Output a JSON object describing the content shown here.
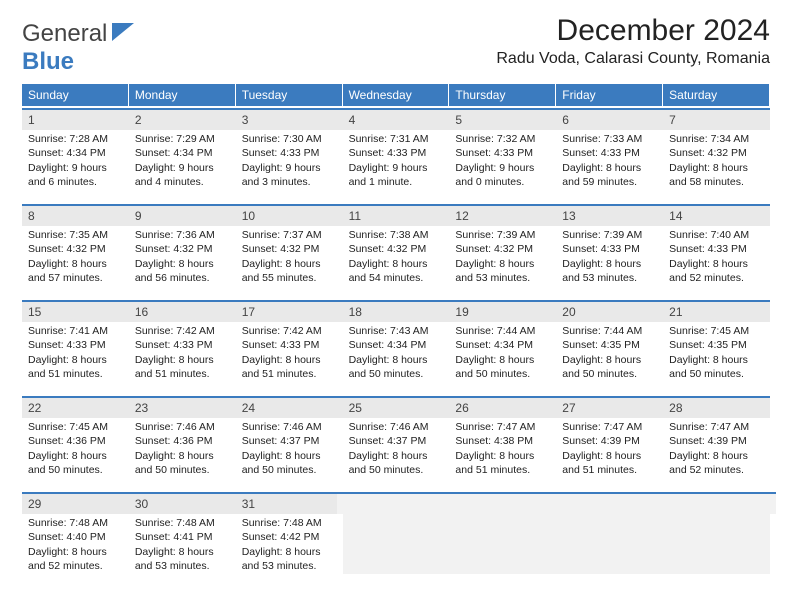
{
  "logo": {
    "part1": "General",
    "part2": "Blue"
  },
  "title": "December 2024",
  "location": "Radu Voda, Calarasi County, Romania",
  "colors": {
    "header_bg": "#3b7bbf",
    "header_text": "#ffffff",
    "daynum_bg": "#e9e9e9",
    "border": "#3b7bbf",
    "body_text": "#222222",
    "empty_bg": "#f2f2f2"
  },
  "fonts": {
    "family": "Arial",
    "title_size_pt": 22,
    "body_size_pt": 8
  },
  "day_headers": [
    "Sunday",
    "Monday",
    "Tuesday",
    "Wednesday",
    "Thursday",
    "Friday",
    "Saturday"
  ],
  "weeks": [
    [
      {
        "day": "1",
        "sunrise": "Sunrise: 7:28 AM",
        "sunset": "Sunset: 4:34 PM",
        "d1": "Daylight: 9 hours",
        "d2": "and 6 minutes."
      },
      {
        "day": "2",
        "sunrise": "Sunrise: 7:29 AM",
        "sunset": "Sunset: 4:34 PM",
        "d1": "Daylight: 9 hours",
        "d2": "and 4 minutes."
      },
      {
        "day": "3",
        "sunrise": "Sunrise: 7:30 AM",
        "sunset": "Sunset: 4:33 PM",
        "d1": "Daylight: 9 hours",
        "d2": "and 3 minutes."
      },
      {
        "day": "4",
        "sunrise": "Sunrise: 7:31 AM",
        "sunset": "Sunset: 4:33 PM",
        "d1": "Daylight: 9 hours",
        "d2": "and 1 minute."
      },
      {
        "day": "5",
        "sunrise": "Sunrise: 7:32 AM",
        "sunset": "Sunset: 4:33 PM",
        "d1": "Daylight: 9 hours",
        "d2": "and 0 minutes."
      },
      {
        "day": "6",
        "sunrise": "Sunrise: 7:33 AM",
        "sunset": "Sunset: 4:33 PM",
        "d1": "Daylight: 8 hours",
        "d2": "and 59 minutes."
      },
      {
        "day": "7",
        "sunrise": "Sunrise: 7:34 AM",
        "sunset": "Sunset: 4:32 PM",
        "d1": "Daylight: 8 hours",
        "d2": "and 58 minutes."
      }
    ],
    [
      {
        "day": "8",
        "sunrise": "Sunrise: 7:35 AM",
        "sunset": "Sunset: 4:32 PM",
        "d1": "Daylight: 8 hours",
        "d2": "and 57 minutes."
      },
      {
        "day": "9",
        "sunrise": "Sunrise: 7:36 AM",
        "sunset": "Sunset: 4:32 PM",
        "d1": "Daylight: 8 hours",
        "d2": "and 56 minutes."
      },
      {
        "day": "10",
        "sunrise": "Sunrise: 7:37 AM",
        "sunset": "Sunset: 4:32 PM",
        "d1": "Daylight: 8 hours",
        "d2": "and 55 minutes."
      },
      {
        "day": "11",
        "sunrise": "Sunrise: 7:38 AM",
        "sunset": "Sunset: 4:32 PM",
        "d1": "Daylight: 8 hours",
        "d2": "and 54 minutes."
      },
      {
        "day": "12",
        "sunrise": "Sunrise: 7:39 AM",
        "sunset": "Sunset: 4:32 PM",
        "d1": "Daylight: 8 hours",
        "d2": "and 53 minutes."
      },
      {
        "day": "13",
        "sunrise": "Sunrise: 7:39 AM",
        "sunset": "Sunset: 4:33 PM",
        "d1": "Daylight: 8 hours",
        "d2": "and 53 minutes."
      },
      {
        "day": "14",
        "sunrise": "Sunrise: 7:40 AM",
        "sunset": "Sunset: 4:33 PM",
        "d1": "Daylight: 8 hours",
        "d2": "and 52 minutes."
      }
    ],
    [
      {
        "day": "15",
        "sunrise": "Sunrise: 7:41 AM",
        "sunset": "Sunset: 4:33 PM",
        "d1": "Daylight: 8 hours",
        "d2": "and 51 minutes."
      },
      {
        "day": "16",
        "sunrise": "Sunrise: 7:42 AM",
        "sunset": "Sunset: 4:33 PM",
        "d1": "Daylight: 8 hours",
        "d2": "and 51 minutes."
      },
      {
        "day": "17",
        "sunrise": "Sunrise: 7:42 AM",
        "sunset": "Sunset: 4:33 PM",
        "d1": "Daylight: 8 hours",
        "d2": "and 51 minutes."
      },
      {
        "day": "18",
        "sunrise": "Sunrise: 7:43 AM",
        "sunset": "Sunset: 4:34 PM",
        "d1": "Daylight: 8 hours",
        "d2": "and 50 minutes."
      },
      {
        "day": "19",
        "sunrise": "Sunrise: 7:44 AM",
        "sunset": "Sunset: 4:34 PM",
        "d1": "Daylight: 8 hours",
        "d2": "and 50 minutes."
      },
      {
        "day": "20",
        "sunrise": "Sunrise: 7:44 AM",
        "sunset": "Sunset: 4:35 PM",
        "d1": "Daylight: 8 hours",
        "d2": "and 50 minutes."
      },
      {
        "day": "21",
        "sunrise": "Sunrise: 7:45 AM",
        "sunset": "Sunset: 4:35 PM",
        "d1": "Daylight: 8 hours",
        "d2": "and 50 minutes."
      }
    ],
    [
      {
        "day": "22",
        "sunrise": "Sunrise: 7:45 AM",
        "sunset": "Sunset: 4:36 PM",
        "d1": "Daylight: 8 hours",
        "d2": "and 50 minutes."
      },
      {
        "day": "23",
        "sunrise": "Sunrise: 7:46 AM",
        "sunset": "Sunset: 4:36 PM",
        "d1": "Daylight: 8 hours",
        "d2": "and 50 minutes."
      },
      {
        "day": "24",
        "sunrise": "Sunrise: 7:46 AM",
        "sunset": "Sunset: 4:37 PM",
        "d1": "Daylight: 8 hours",
        "d2": "and 50 minutes."
      },
      {
        "day": "25",
        "sunrise": "Sunrise: 7:46 AM",
        "sunset": "Sunset: 4:37 PM",
        "d1": "Daylight: 8 hours",
        "d2": "and 50 minutes."
      },
      {
        "day": "26",
        "sunrise": "Sunrise: 7:47 AM",
        "sunset": "Sunset: 4:38 PM",
        "d1": "Daylight: 8 hours",
        "d2": "and 51 minutes."
      },
      {
        "day": "27",
        "sunrise": "Sunrise: 7:47 AM",
        "sunset": "Sunset: 4:39 PM",
        "d1": "Daylight: 8 hours",
        "d2": "and 51 minutes."
      },
      {
        "day": "28",
        "sunrise": "Sunrise: 7:47 AM",
        "sunset": "Sunset: 4:39 PM",
        "d1": "Daylight: 8 hours",
        "d2": "and 52 minutes."
      }
    ],
    [
      {
        "day": "29",
        "sunrise": "Sunrise: 7:48 AM",
        "sunset": "Sunset: 4:40 PM",
        "d1": "Daylight: 8 hours",
        "d2": "and 52 minutes."
      },
      {
        "day": "30",
        "sunrise": "Sunrise: 7:48 AM",
        "sunset": "Sunset: 4:41 PM",
        "d1": "Daylight: 8 hours",
        "d2": "and 53 minutes."
      },
      {
        "day": "31",
        "sunrise": "Sunrise: 7:48 AM",
        "sunset": "Sunset: 4:42 PM",
        "d1": "Daylight: 8 hours",
        "d2": "and 53 minutes."
      },
      null,
      null,
      null,
      null
    ]
  ]
}
